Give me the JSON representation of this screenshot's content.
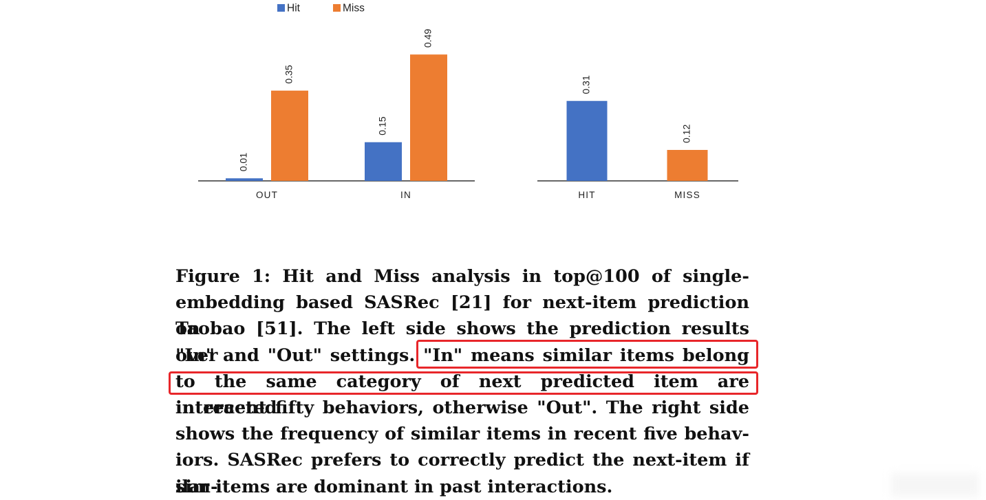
{
  "chart_data": [
    {
      "type": "bar",
      "categories": [
        "OUT",
        "IN"
      ],
      "series": [
        {
          "name": "Hit",
          "values": [
            0.01,
            0.15
          ],
          "color": "#4472c4"
        },
        {
          "name": "Miss",
          "values": [
            0.35,
            0.49
          ],
          "color": "#ed7d31"
        }
      ],
      "legend": "top-left",
      "ylim": [
        0,
        0.5
      ],
      "grid": false,
      "data_labels": true,
      "xlabel": "",
      "ylabel": ""
    },
    {
      "type": "bar",
      "categories": [
        "HIT",
        "MISS"
      ],
      "values": [
        0.31,
        0.12
      ],
      "colors": [
        "#4472c4",
        "#ed7d31"
      ],
      "ylim": [
        0,
        0.5
      ],
      "grid": false,
      "data_labels": true,
      "xlabel": "",
      "ylabel": ""
    }
  ],
  "caption": {
    "lines": [
      "Figure 1: Hit and Miss analysis in top@100 of single-",
      "embedding based SASRec [21] for next-item prediction on",
      "Taobao [51]. The left side shows the prediction results over",
      "\"In\" and \"Out\" settings. \"In\" means similar items belong",
      "to the same category of next predicted item are interacted",
      "in recent fifty behaviors, otherwise \"Out\". The right side",
      "shows the frequency of similar items in recent five behav-",
      "iors. SASRec prefers to correctly predict the next-item if sim-",
      "ilar items are dominant in past interactions."
    ]
  },
  "highlight_color": "#e8262a"
}
